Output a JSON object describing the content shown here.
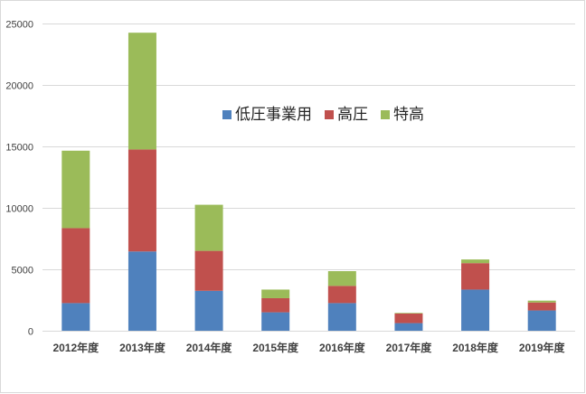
{
  "chart_data": {
    "type": "bar",
    "stacked": true,
    "categories": [
      "2012年度",
      "2013年度",
      "2014年度",
      "2015年度",
      "2016年度",
      "2017年度",
      "2018年度",
      "2019年度"
    ],
    "series": [
      {
        "name": "低圧事業用",
        "color": "#4f81bd",
        "values": [
          2250,
          6450,
          3250,
          1500,
          2250,
          620,
          3350,
          1650
        ]
      },
      {
        "name": "高圧",
        "color": "#c0504d",
        "values": [
          6100,
          8300,
          3250,
          1150,
          1400,
          780,
          2150,
          650
        ]
      },
      {
        "name": "特高",
        "color": "#9bbb59",
        "values": [
          6300,
          9500,
          3750,
          700,
          1200,
          50,
          300,
          150
        ]
      }
    ],
    "ylim": [
      0,
      25000
    ],
    "yticks": [
      "0",
      "5000",
      "10000",
      "15000",
      "20000",
      "25000"
    ],
    "grid": true,
    "legend_position": "inside-top-center",
    "title": "",
    "xlabel": "",
    "ylabel": ""
  }
}
